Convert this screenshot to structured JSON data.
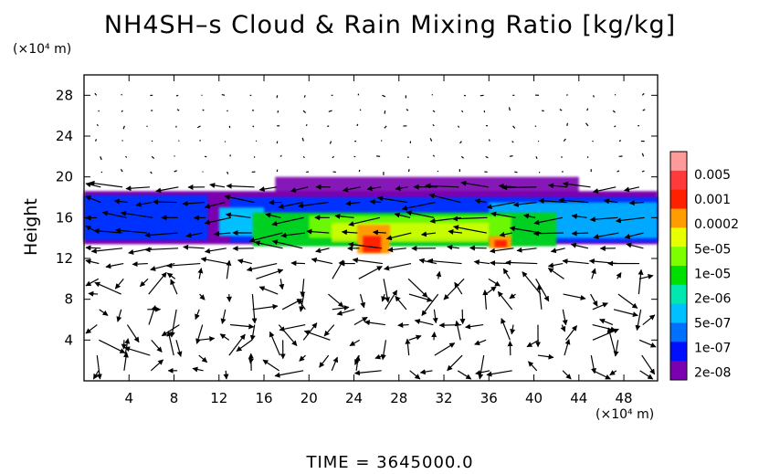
{
  "title": "NH4SH–s Cloud & Rain Mixing Ratio [kg/kg]",
  "y_unit": "(×10⁴ m)",
  "x_unit": "(×10⁴ m)",
  "time_label": "TIME  =  3645000.0",
  "chart_data": {
    "type": "heatmap",
    "title": "NH4SH–s Cloud & Rain Mixing Ratio [kg/kg]",
    "xlabel": "",
    "ylabel": "Height",
    "xlim": [
      0,
      51
    ],
    "ylim": [
      0,
      30
    ],
    "x_ticks": [
      4,
      8,
      12,
      16,
      20,
      24,
      28,
      32,
      36,
      40,
      44,
      48
    ],
    "y_ticks": [
      4,
      8,
      12,
      16,
      20,
      24,
      28
    ],
    "colorbar": {
      "labels": [
        "0.005",
        "0.001",
        "0.0002",
        "5e-05",
        "1e-05",
        "2e-06",
        "5e-07",
        "1e-07",
        "2e-08"
      ],
      "colors": [
        "#ff9a9a",
        "#ff3a3a",
        "#ff2000",
        "#ff9c00",
        "#e7ff00",
        "#7dff00",
        "#00e000",
        "#00e8b0",
        "#00c0ff",
        "#0070ff",
        "#0010ff",
        "#7a00b0"
      ]
    },
    "cloud_layers": [
      {
        "x_range": [
          0,
          51
        ],
        "y_range": [
          13.5,
          18.5
        ],
        "level": "1e-07"
      },
      {
        "x_range": [
          14,
          44
        ],
        "y_range": [
          12.5,
          16.5
        ],
        "level": "1e-05"
      },
      {
        "x_range": [
          24.5,
          27
        ],
        "y_range": [
          12.5,
          15
        ],
        "level": "0.0002"
      },
      {
        "x_range": [
          36,
          38
        ],
        "y_range": [
          13,
          14
        ],
        "level": "0.0002"
      }
    ],
    "wind_vectors": "shown"
  }
}
